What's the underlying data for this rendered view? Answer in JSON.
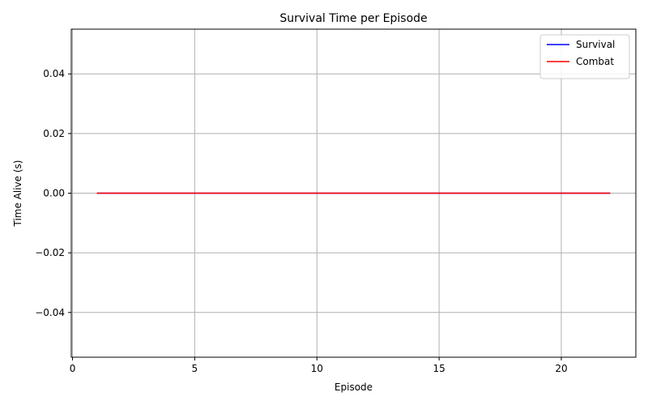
{
  "chart_data": {
    "type": "line",
    "title": "Survival Time per Episode",
    "xlabel": "Episode",
    "ylabel": "Time Alive (s)",
    "xlim": [
      -0.05,
      23.05
    ],
    "ylim": [
      -0.055,
      0.055
    ],
    "xticks": [
      0,
      5,
      10,
      15,
      20
    ],
    "xtick_labels": [
      "0",
      "5",
      "10",
      "15",
      "20"
    ],
    "yticks": [
      0.04,
      0.02,
      0.0,
      -0.02,
      -0.04
    ],
    "ytick_labels": [
      "0.04",
      "0.02",
      "0.00",
      "−0.02",
      "−0.04"
    ],
    "grid": true,
    "legend_position": "top-right",
    "series": [
      {
        "name": "Survival",
        "color": "#0000ff",
        "x": [
          1,
          2,
          3,
          4,
          5,
          6,
          7,
          8,
          9,
          10,
          11,
          12,
          13,
          14,
          15,
          16,
          17,
          18,
          19,
          20,
          21,
          22
        ],
        "y": [
          0,
          0,
          0,
          0,
          0,
          0,
          0,
          0,
          0,
          0,
          0,
          0,
          0,
          0,
          0,
          0,
          0,
          0,
          0,
          0,
          0,
          0
        ]
      },
      {
        "name": "Combat",
        "color": "#ff0000",
        "x": [
          1,
          2,
          3,
          4,
          5,
          6,
          7,
          8,
          9,
          10,
          11,
          12,
          13,
          14,
          15,
          16,
          17,
          18,
          19,
          20,
          21,
          22
        ],
        "y": [
          0,
          0,
          0,
          0,
          0,
          0,
          0,
          0,
          0,
          0,
          0,
          0,
          0,
          0,
          0,
          0,
          0,
          0,
          0,
          0,
          0,
          0
        ]
      }
    ]
  }
}
